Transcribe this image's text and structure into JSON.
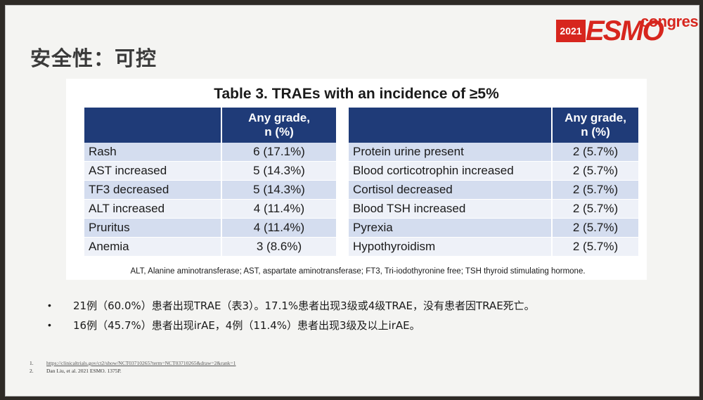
{
  "slide": {
    "title": "安全性：可控"
  },
  "logo": {
    "year": "2021",
    "brand": "ESMO",
    "suffix": "congress",
    "color": "#d7261e"
  },
  "table": {
    "caption": "Table 3. TRAEs with an incidence of ≥5%",
    "header_color": "#1f3b78",
    "left": {
      "header": [
        "",
        "Any grade,\nn (%)"
      ],
      "rows": [
        [
          "Rash",
          "6 (17.1%)"
        ],
        [
          "AST increased",
          "5 (14.3%)"
        ],
        [
          "TF3 decreased",
          "5 (14.3%)"
        ],
        [
          "ALT increased",
          "4 (11.4%)"
        ],
        [
          "Pruritus",
          "4 (11.4%)"
        ],
        [
          "Anemia",
          "3 (8.6%)"
        ]
      ]
    },
    "right": {
      "header": [
        "",
        "Any grade,\nn (%)"
      ],
      "rows": [
        [
          "Protein urine present",
          "2 (5.7%)"
        ],
        [
          "Blood corticotrophin increased",
          "2 (5.7%)"
        ],
        [
          "Cortisol decreased",
          "2 (5.7%)"
        ],
        [
          "Blood TSH increased",
          "2 (5.7%)"
        ],
        [
          "Pyrexia",
          "2 (5.7%)"
        ],
        [
          "Hypothyroidism",
          "2 (5.7%)"
        ]
      ]
    },
    "footnote": "ALT, Alanine aminotransferase; AST, aspartate aminotransferase; FT3, Tri-iodothyronine free; TSH thyroid stimulating hormone."
  },
  "bullets": [
    "21例（60.0%）患者出现TRAE（表3）。17.1%患者出现3级或4级TRAE，没有患者因TRAE死亡。",
    "16例（45.7%）患者出现irAE，4例（11.4%）患者出现3级及以上irAE。"
  ],
  "bullet_symbol": "•",
  "references": [
    {
      "num": "1.",
      "text": "https://clinicaltrials.gov/ct2/show/NCT03710265?term=NCT03710265&draw=2&rank=1"
    },
    {
      "num": "2.",
      "text": "Dan Liu, et al. 2021 ESMO. 1375P."
    }
  ]
}
